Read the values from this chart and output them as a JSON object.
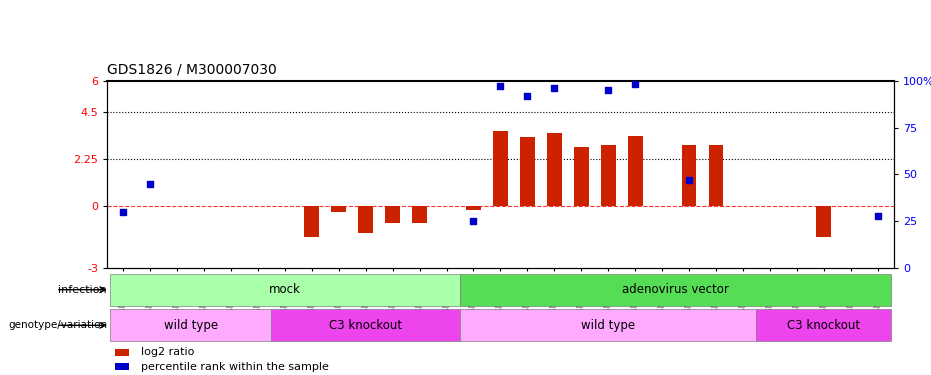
{
  "title": "GDS1826 / M300007030",
  "samples": [
    "GSM87316",
    "GSM87317",
    "GSM93998",
    "GSM93999",
    "GSM94000",
    "GSM94001",
    "GSM93633",
    "GSM93634",
    "GSM93651",
    "GSM93652",
    "GSM93653",
    "GSM93654",
    "GSM93657",
    "GSM86643",
    "GSM87306",
    "GSM87307",
    "GSM87308",
    "GSM87309",
    "GSM87310",
    "GSM87311",
    "GSM87312",
    "GSM87313",
    "GSM87314",
    "GSM87315",
    "GSM93655",
    "GSM93656",
    "GSM93658",
    "GSM93659",
    "GSM93660"
  ],
  "log2_ratio": [
    -0.05,
    -0.05,
    -0.05,
    -0.05,
    -0.05,
    -0.05,
    -0.05,
    -1.5,
    -0.3,
    -1.3,
    -0.85,
    -0.85,
    -0.05,
    -0.2,
    3.6,
    3.3,
    3.5,
    2.8,
    2.9,
    3.35,
    -0.05,
    2.9,
    2.9,
    -0.05,
    -0.05,
    -0.05,
    -1.5,
    -0.05,
    -0.05
  ],
  "percentile_rank": [
    30,
    45,
    null,
    null,
    null,
    null,
    null,
    null,
    null,
    null,
    null,
    null,
    null,
    25,
    97,
    92,
    96,
    null,
    95,
    98,
    null,
    47,
    null,
    null,
    null,
    null,
    null,
    null,
    28
  ],
  "ylim": [
    -3,
    6
  ],
  "y2lim": [
    0,
    100
  ],
  "yticks_left": [
    -3,
    0,
    2.25,
    4.5,
    6
  ],
  "yticks_right": [
    0,
    25,
    50,
    75,
    100
  ],
  "bar_color": "#cc2200",
  "dot_color": "#0000cc",
  "infection_groups": [
    {
      "label": "mock",
      "start": 0,
      "end": 13,
      "color": "#aaffaa"
    },
    {
      "label": "adenovirus vector",
      "start": 13,
      "end": 29,
      "color": "#55dd55"
    }
  ],
  "genotype_groups": [
    {
      "label": "wild type",
      "start": 0,
      "end": 6,
      "color": "#ffaaff"
    },
    {
      "label": "C3 knockout",
      "start": 6,
      "end": 13,
      "color": "#ee44ee"
    },
    {
      "label": "wild type",
      "start": 13,
      "end": 24,
      "color": "#ffaaff"
    },
    {
      "label": "C3 knockout",
      "start": 24,
      "end": 29,
      "color": "#ee44ee"
    }
  ],
  "legend_items": [
    {
      "label": "log2 ratio",
      "color": "#cc2200"
    },
    {
      "label": "percentile rank within the sample",
      "color": "#0000cc"
    }
  ]
}
